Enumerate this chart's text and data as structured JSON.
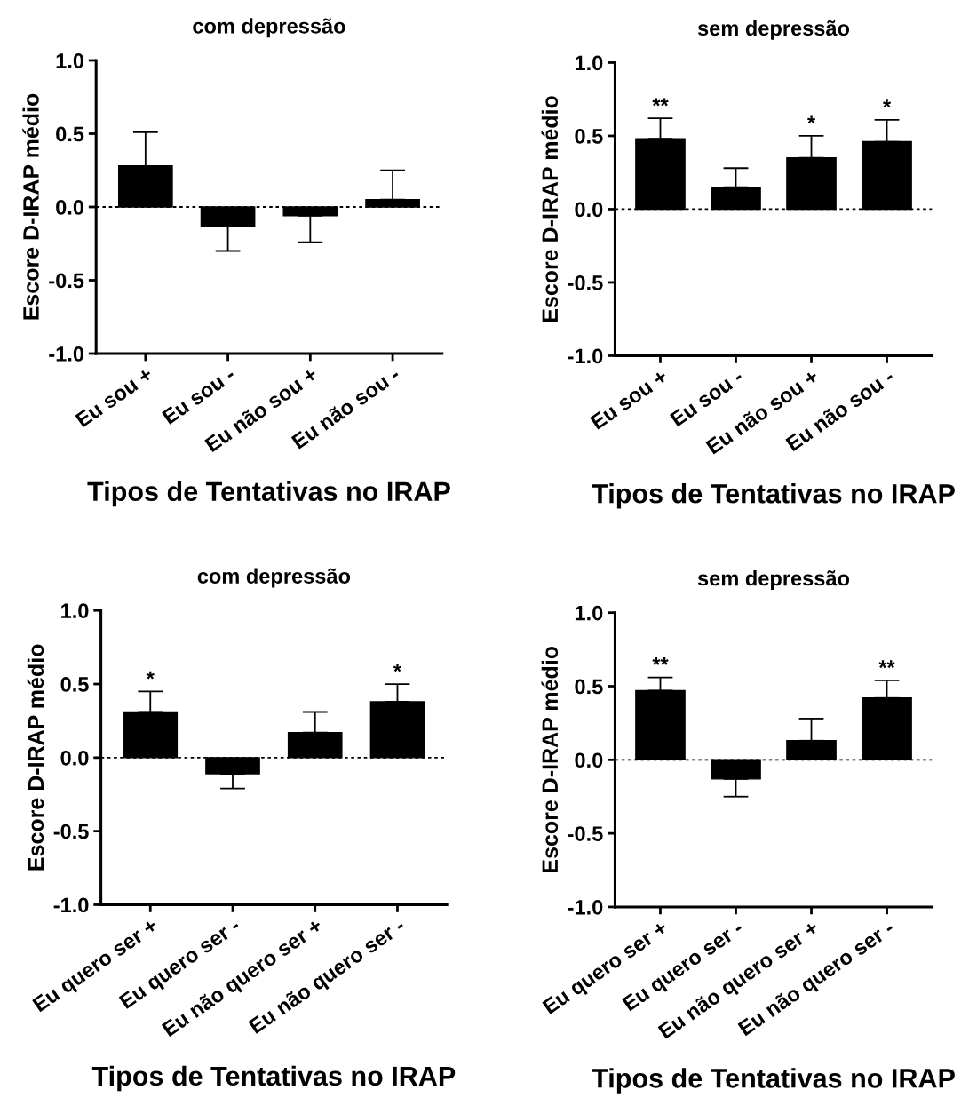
{
  "chart_data": [
    {
      "type": "bar",
      "title": "com depressão",
      "xlabel": "Tipos de Tentativas no IRAP",
      "ylabel": "Escore D-IRAP médio",
      "categories": [
        "Eu sou +",
        "Eu sou -",
        "Eu não sou +",
        "Eu não sou -"
      ],
      "values": [
        0.28,
        -0.13,
        -0.06,
        0.05
      ],
      "errors": [
        [
          0.28,
          0.51
        ],
        [
          -0.3,
          -0.13
        ],
        [
          -0.24,
          -0.06
        ],
        [
          0.05,
          0.25
        ]
      ],
      "color": "#000000",
      "ylim": [
        -1.0,
        1.0
      ],
      "yticks": [
        {
          "value": -1.0,
          "label": "-1.0"
        },
        {
          "value": -0.5,
          "label": "-0.5"
        },
        {
          "value": 0.0,
          "label": "0.0"
        },
        {
          "value": 0.5,
          "label": "0.5"
        },
        {
          "value": 1.0,
          "label": "1.0"
        }
      ],
      "ref_lines": [
        {
          "axis": "y",
          "value": 0,
          "color": "#000000",
          "line_style": "dashed"
        }
      ],
      "grid": false,
      "legend": false
    },
    {
      "type": "bar",
      "title": "sem depressão",
      "xlabel": "Tipos de Tentativas no IRAP",
      "ylabel": "Escore D-IRAP médio",
      "categories": [
        "Eu sou +",
        "Eu sou -",
        "Eu não sou +",
        "Eu não sou -"
      ],
      "values": [
        0.48,
        0.15,
        0.35,
        0.46
      ],
      "errors": [
        [
          0.48,
          0.62
        ],
        [
          0.15,
          0.28
        ],
        [
          0.35,
          0.5
        ],
        [
          0.46,
          0.61
        ]
      ],
      "color": "#000000",
      "ylim": [
        -1.0,
        1.0
      ],
      "yticks": [
        {
          "value": -1.0,
          "label": "-1.0"
        },
        {
          "value": -0.5,
          "label": "-0.5"
        },
        {
          "value": 0.0,
          "label": "0.0"
        },
        {
          "value": 0.5,
          "label": "0.5"
        },
        {
          "value": 1.0,
          "label": "1.0"
        }
      ],
      "ref_lines": [
        {
          "axis": "y",
          "value": 0,
          "color": "#000000",
          "line_style": "dashed"
        }
      ],
      "annotations": [
        {
          "text": "**",
          "x": "Eu sou +",
          "y": 0.62
        },
        {
          "text": "*",
          "x": "Eu não sou +",
          "y": 0.5
        },
        {
          "text": "*",
          "x": "Eu não sou -",
          "y": 0.61
        }
      ],
      "grid": false,
      "legend": false
    },
    {
      "type": "bar",
      "title": "com depressão",
      "xlabel": "Tipos de Tentativas no IRAP",
      "ylabel": "Escore D-IRAP médio",
      "categories": [
        "Eu quero ser +",
        "Eu quero ser -",
        "Eu não quero ser +",
        "Eu não quero ser -"
      ],
      "values": [
        0.31,
        -0.11,
        0.17,
        0.38
      ],
      "errors": [
        [
          0.31,
          0.45
        ],
        [
          -0.21,
          -0.11
        ],
        [
          0.17,
          0.31
        ],
        [
          0.38,
          0.5
        ]
      ],
      "color": "#000000",
      "ylim": [
        -1.0,
        1.0
      ],
      "yticks": [
        {
          "value": -1.0,
          "label": "-1.0"
        },
        {
          "value": -0.5,
          "label": "-0.5"
        },
        {
          "value": 0.0,
          "label": "0.0"
        },
        {
          "value": 0.5,
          "label": "0.5"
        },
        {
          "value": 1.0,
          "label": "1.0"
        }
      ],
      "ref_lines": [
        {
          "axis": "y",
          "value": 0,
          "color": "#000000",
          "line_style": "dashed"
        }
      ],
      "annotations": [
        {
          "text": "*",
          "x": "Eu quero ser +",
          "y": 0.45
        },
        {
          "text": "*",
          "x": "Eu não quero ser -",
          "y": 0.5
        }
      ],
      "grid": false,
      "legend": false
    },
    {
      "type": "bar",
      "title": "sem depressão",
      "xlabel": "Tipos de Tentativas no IRAP",
      "ylabel": "Escore D-IRAP médio",
      "categories": [
        "Eu quero ser +",
        "Eu quero ser -",
        "Eu não quero ser +",
        "Eu não quero ser -"
      ],
      "values": [
        0.47,
        -0.13,
        0.13,
        0.42
      ],
      "errors": [
        [
          0.47,
          0.56
        ],
        [
          -0.25,
          -0.13
        ],
        [
          0.13,
          0.28
        ],
        [
          0.42,
          0.54
        ]
      ],
      "color": "#000000",
      "ylim": [
        -1.0,
        1.0
      ],
      "yticks": [
        {
          "value": -1.0,
          "label": "-1.0"
        },
        {
          "value": -0.5,
          "label": "-0.5"
        },
        {
          "value": 0.0,
          "label": "0.0"
        },
        {
          "value": 0.5,
          "label": "0.5"
        },
        {
          "value": 1.0,
          "label": "1.0"
        }
      ],
      "ref_lines": [
        {
          "axis": "y",
          "value": 0,
          "color": "#000000",
          "line_style": "dashed"
        }
      ],
      "annotations": [
        {
          "text": "**",
          "x": "Eu quero ser +",
          "y": 0.56
        },
        {
          "text": "**",
          "x": "Eu não quero ser -",
          "y": 0.54
        }
      ],
      "grid": false,
      "legend": false
    }
  ]
}
